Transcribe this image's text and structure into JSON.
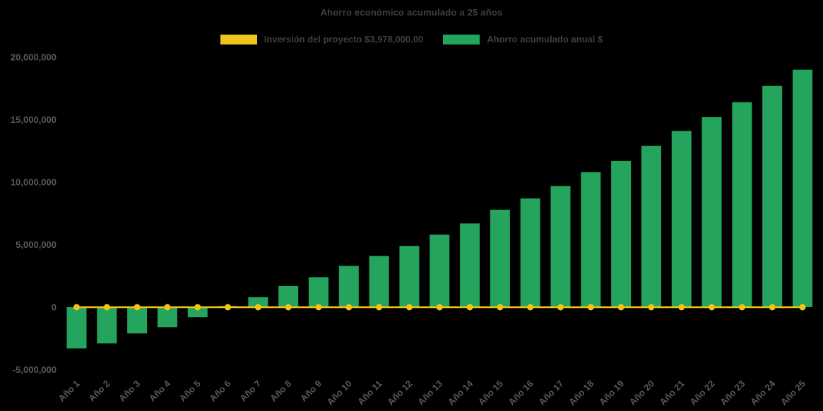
{
  "chart_data": {
    "type": "bar",
    "title": "Ahorro económico acumulado a 25 años",
    "categories": [
      "Año 1",
      "Año 2",
      "Año 3",
      "Año 4",
      "Año 5",
      "Año 6",
      "Año 7",
      "Año 8",
      "Año 9",
      "Año 10",
      "Año 11",
      "Año 12",
      "Año 13",
      "Año 14",
      "Año 15",
      "Año 16",
      "Año 17",
      "Año 18",
      "Año 19",
      "Año 20",
      "Año 21",
      "Año 22",
      "Año 23",
      "Año 24",
      "Año 25"
    ],
    "series": [
      {
        "name": "Inversión del proyecto $3,978,000.00",
        "type": "line",
        "color": "#F0C419",
        "values": [
          0,
          0,
          0,
          0,
          0,
          0,
          0,
          0,
          0,
          0,
          0,
          0,
          0,
          0,
          0,
          0,
          0,
          0,
          0,
          0,
          0,
          0,
          0,
          0,
          0
        ]
      },
      {
        "name": "Ahorro acumulado anual $",
        "type": "bar",
        "color": "#24A45C",
        "values": [
          -3300000,
          -2900000,
          -2100000,
          -1600000,
          -800000,
          100000,
          800000,
          1700000,
          2400000,
          3300000,
          4100000,
          4900000,
          5800000,
          6700000,
          7800000,
          8700000,
          9700000,
          10800000,
          11700000,
          12900000,
          14100000,
          15200000,
          16400000,
          17700000,
          19000000
        ]
      }
    ],
    "ylim": [
      -5000000,
      20000000
    ],
    "yticks": [
      -5000000,
      0,
      5000000,
      10000000,
      15000000,
      20000000
    ],
    "grid": false,
    "legend_position": "top",
    "background": "#000000",
    "text_color": "#595959",
    "title_color": "#3f3f3f"
  }
}
